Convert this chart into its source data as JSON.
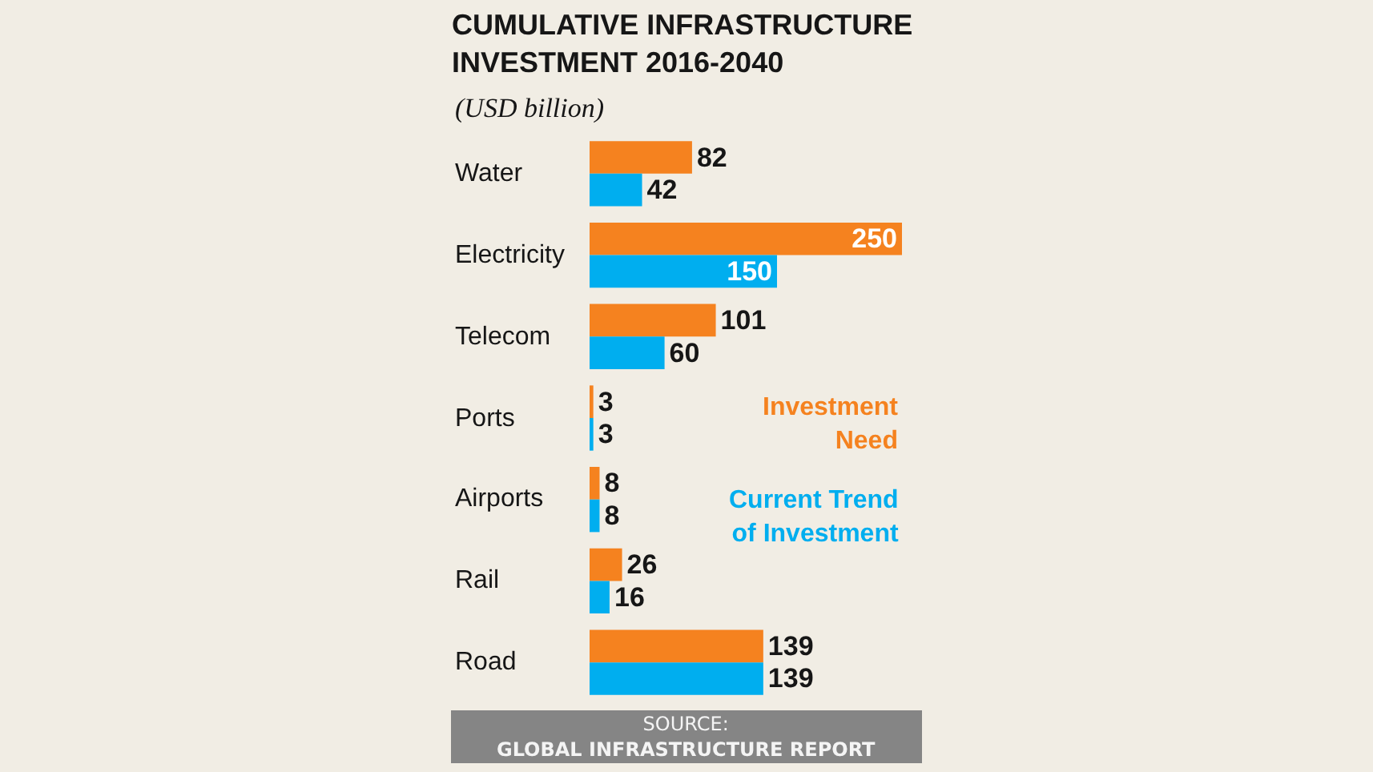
{
  "chart_data": {
    "type": "bar",
    "orientation": "horizontal",
    "title": "CUMULATIVE INFRASTRUCTURE INVESTMENT 2016-2040",
    "subtitle": "(USD billion)",
    "categories": [
      "Water",
      "Electricity",
      "Telecom",
      "Ports",
      "Airports",
      "Rail",
      "Road"
    ],
    "series": [
      {
        "name": "Investment Need",
        "color": "#f5821f",
        "values": [
          82,
          250,
          101,
          3,
          8,
          26,
          139
        ]
      },
      {
        "name": "Current Trend of Investment",
        "color": "#00aeef",
        "values": [
          42,
          150,
          60,
          3,
          8,
          16,
          139
        ]
      }
    ],
    "xlim": [
      0,
      250
    ],
    "data_labels": true,
    "tick_labels": "y",
    "legend": "right",
    "annotations": [
      "SOURCE: GLOBAL INFRASTRUCTURE REPORT"
    ]
  }
}
